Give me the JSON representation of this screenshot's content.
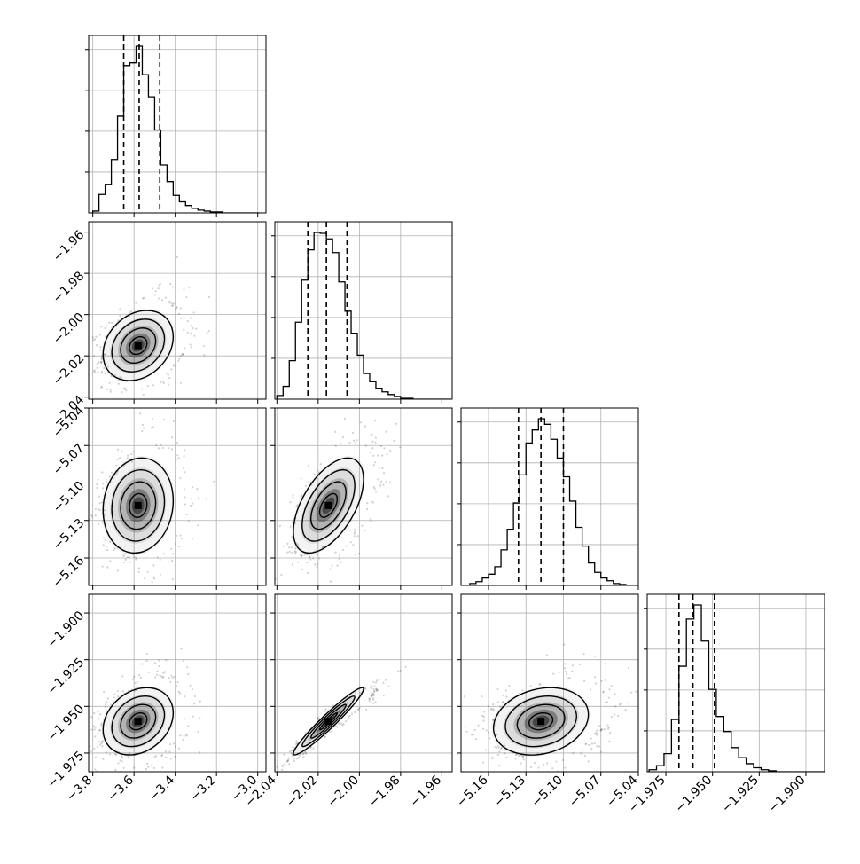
{
  "chart_data": {
    "type": "corner",
    "title": "",
    "parameters": [
      {
        "axis_range": [
          -3.82,
          -2.96
        ],
        "ticks": [
          "-3.8",
          "-3.6",
          "-3.4",
          "-3.2",
          "-3.0"
        ],
        "tick_values": [
          -3.8,
          -3.6,
          -3.4,
          -3.2,
          -3.0
        ],
        "histogram": {
          "x": [
            -3.8,
            -3.77,
            -3.74,
            -3.71,
            -3.68,
            -3.65,
            -3.62,
            -3.59,
            -3.56,
            -3.53,
            -3.5,
            -3.47,
            -3.44,
            -3.41,
            -3.38,
            -3.35,
            -3.32,
            -3.29,
            -3.26,
            -3.23,
            -3.2,
            -3.17,
            -3.14,
            -3.11,
            -3.08,
            -3.05,
            -3.02
          ],
          "counts": [
            2,
            20,
            31,
            58,
            105,
            160,
            163,
            181,
            150,
            126,
            90,
            52,
            34,
            19,
            12,
            8,
            5,
            3,
            2,
            1,
            1,
            0,
            0,
            0,
            0,
            0,
            0
          ]
        },
        "quantiles": {
          "q16": -3.65,
          "median": -3.575,
          "q84": -3.475
        }
      },
      {
        "axis_range": [
          -2.041,
          -1.955
        ],
        "ticks": [
          "-2.04",
          "-2.02",
          "-2.00",
          "-1.98",
          "-1.96"
        ],
        "tick_values": [
          -2.04,
          -2.02,
          -2.0,
          -1.98,
          -1.96
        ],
        "histogram": {
          "x": [
            -2.04,
            -2.037,
            -2.034,
            -2.031,
            -2.028,
            -2.025,
            -2.022,
            -2.019,
            -2.016,
            -2.013,
            -2.01,
            -2.007,
            -2.004,
            -2.001,
            -1.998,
            -1.995,
            -1.992,
            -1.989,
            -1.986,
            -1.983,
            -1.98,
            -1.977,
            -1.974,
            -1.971,
            -1.968,
            -1.965,
            -1.962,
            -1.959
          ],
          "counts": [
            4,
            14,
            42,
            84,
            130,
            163,
            182,
            181,
            175,
            160,
            128,
            96,
            72,
            48,
            28,
            19,
            12,
            8,
            5,
            3,
            1,
            1,
            0,
            0,
            0,
            0,
            0,
            0
          ]
        },
        "quantiles": {
          "q16": -2.025,
          "median": -2.016,
          "q84": -2.006
        }
      },
      {
        "axis_range": [
          -5.182,
          -5.04
        ],
        "ticks": [
          "-5.16",
          "-5.13",
          "-5.10",
          "-5.07",
          "-5.04"
        ],
        "tick_values": [
          -5.16,
          -5.13,
          -5.1,
          -5.07,
          -5.04
        ],
        "histogram": {
          "x": [
            -5.18,
            -5.175,
            -5.17,
            -5.165,
            -5.16,
            -5.155,
            -5.15,
            -5.145,
            -5.14,
            -5.135,
            -5.13,
            -5.125,
            -5.12,
            -5.115,
            -5.11,
            -5.105,
            -5.1,
            -5.095,
            -5.09,
            -5.085,
            -5.08,
            -5.075,
            -5.07,
            -5.065,
            -5.06,
            -5.055,
            -5.05
          ],
          "counts": [
            0,
            2,
            4,
            8,
            12,
            20,
            38,
            60,
            88,
            118,
            152,
            166,
            178,
            172,
            156,
            136,
            116,
            90,
            62,
            42,
            24,
            14,
            8,
            5,
            2,
            1,
            0
          ]
        },
        "quantiles": {
          "q16": -5.136,
          "median": -5.118,
          "q84": -5.1
        }
      },
      {
        "axis_range": [
          -1.985,
          -1.89
        ],
        "ticks": [
          "-1.975",
          "-1.950",
          "-1.925",
          "-1.900"
        ],
        "tick_values": [
          -1.975,
          -1.95,
          -1.925,
          -1.9
        ],
        "histogram": {
          "x": [
            -1.984,
            -1.98,
            -1.976,
            -1.972,
            -1.968,
            -1.964,
            -1.96,
            -1.956,
            -1.952,
            -1.948,
            -1.944,
            -1.94,
            -1.936,
            -1.932,
            -1.928,
            -1.924,
            -1.92,
            -1.916,
            -1.912,
            -1.908,
            -1.904,
            -1.9,
            -1.896,
            -1.892
          ],
          "counts": [
            2,
            6,
            18,
            52,
            105,
            152,
            166,
            130,
            82,
            55,
            40,
            24,
            14,
            8,
            4,
            2,
            1,
            0,
            0,
            0,
            0,
            0,
            0,
            0
          ]
        },
        "quantiles": {
          "q16": -1.968,
          "median": -1.9605,
          "q84": -1.949
        }
      }
    ],
    "pairs": [
      {
        "row": 1,
        "col": 0,
        "mean": [
          -3.58,
          -2.015
        ],
        "sd": [
          0.085,
          0.0085
        ],
        "rho": 0.25
      },
      {
        "row": 2,
        "col": 0,
        "mean": [
          -3.58,
          -5.118
        ],
        "sd": [
          0.085,
          0.019
        ],
        "rho": 0.1
      },
      {
        "row": 2,
        "col": 1,
        "mean": [
          -2.015,
          -5.118
        ],
        "sd": [
          0.0085,
          0.019
        ],
        "rho": 0.55
      },
      {
        "row": 3,
        "col": 0,
        "mean": [
          -3.58,
          -1.958
        ],
        "sd": [
          0.085,
          0.009
        ],
        "rho": 0.25
      },
      {
        "row": 3,
        "col": 1,
        "mean": [
          -2.015,
          -1.958
        ],
        "sd": [
          0.0085,
          0.009
        ],
        "rho": 0.96
      },
      {
        "row": 3,
        "col": 2,
        "mean": [
          -5.118,
          -1.958
        ],
        "sd": [
          0.019,
          0.009
        ],
        "rho": 0.2
      }
    ],
    "contour_levels_sigma": [
      0.5,
      1.0,
      1.5,
      2.0
    ],
    "grid": true,
    "colors": {
      "hist": "#000000",
      "contour": "#000000",
      "grid": "#b0b0b0",
      "points": "#000000"
    }
  }
}
